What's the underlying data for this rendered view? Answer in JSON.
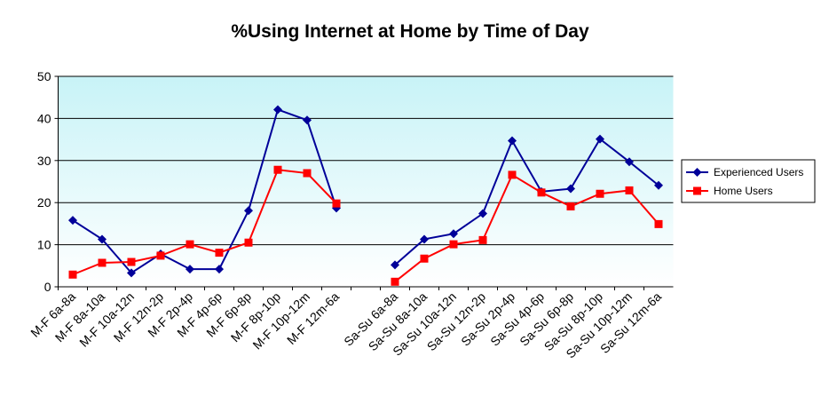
{
  "chart_data": {
    "type": "line",
    "title": "%Using Internet at Home by Time of Day",
    "categories": [
      "M-F 6a-8a",
      "M-F 8a-10a",
      "M-F 10a-12n",
      "M-F 12n-2p",
      "M-F 2p-4p",
      "M-F 4p-6p",
      "M-F 6p-8p",
      "M-F 8p-10p",
      "M-F 10p-12m",
      "M-F 12m-6a",
      null,
      "Sa-Su 6a-8a",
      "Sa-Su 8a-10a",
      "Sa-Su 10a-12n",
      "Sa-Su 12n-2p",
      "Sa-Su 2p-4p",
      "Sa-Su 4p-6p",
      "Sa-Su 6p-8p",
      "Sa-Su 8p-10p",
      "Sa-Su 10p-12m",
      "Sa-Su 12m-6a"
    ],
    "series": [
      {
        "name": "Experienced Users",
        "color": "#000099",
        "marker": "diamond",
        "values": [
          15.8,
          11.3,
          3.3,
          7.8,
          4.2,
          4.2,
          18.1,
          42.1,
          39.6,
          18.7,
          null,
          5.2,
          11.3,
          12.6,
          17.4,
          34.7,
          22.6,
          23.3,
          35.1,
          29.7,
          24.1
        ]
      },
      {
        "name": "Home Users",
        "color": "#ff0000",
        "marker": "square",
        "values": [
          2.9,
          5.7,
          5.9,
          7.4,
          10.1,
          8.1,
          10.5,
          27.8,
          27.0,
          19.8,
          null,
          1.2,
          6.7,
          10.1,
          11.1,
          26.6,
          22.4,
          19.1,
          22.1,
          22.9,
          14.9
        ]
      }
    ],
    "ylim": [
      0,
      50
    ],
    "yticks": [
      0,
      10,
      20,
      30,
      40,
      50
    ],
    "grid": true,
    "legend": "right"
  }
}
